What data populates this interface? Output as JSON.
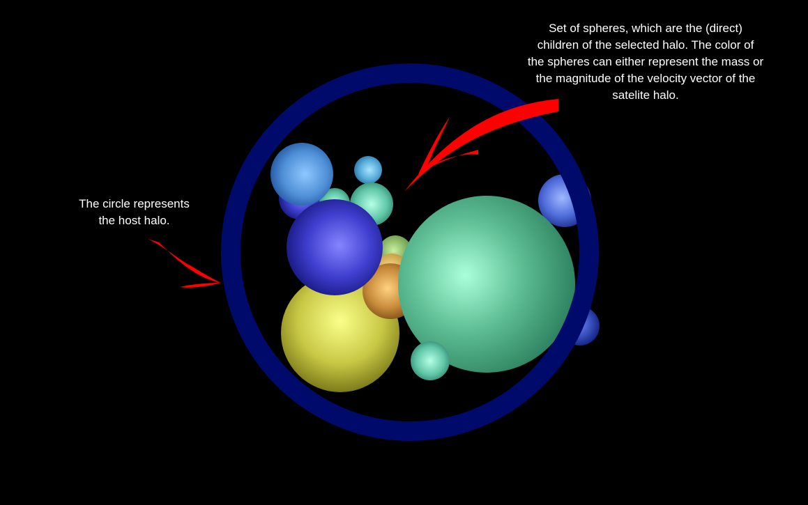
{
  "annotations": {
    "children_note": "Set  of spheres, which are the (direct)\nchildren of the selected halo. The color of\nthe spheres can either represent the mass or\nthe magnitude of the velocity vector of the\nsatelite halo.",
    "host_note": "The circle represents\nthe host halo."
  },
  "colors": {
    "background": "#000000",
    "host_ring": "#000a6b",
    "arrow": "#ff0000",
    "text": "#ffffff"
  }
}
